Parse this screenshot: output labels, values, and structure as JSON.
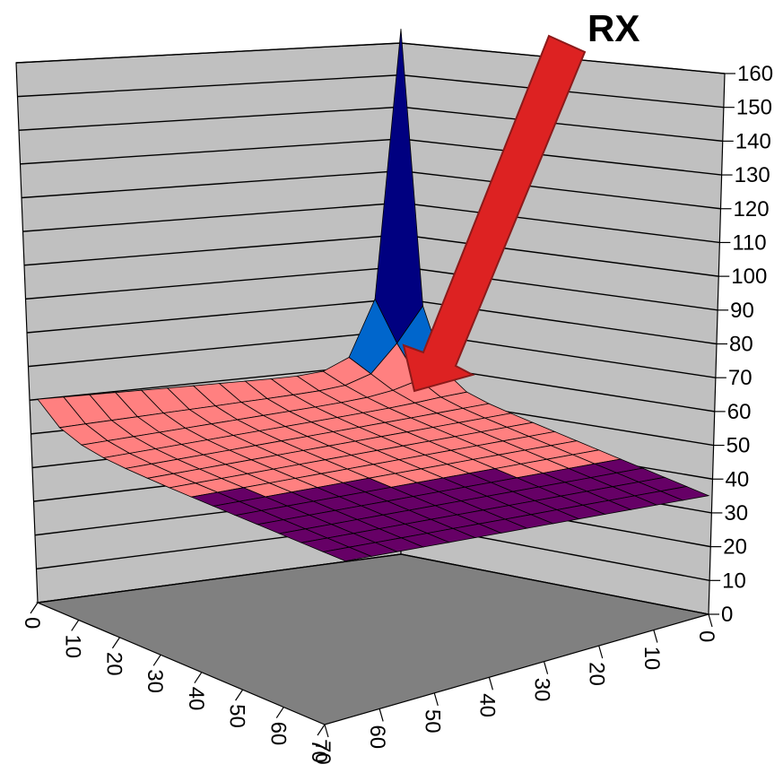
{
  "chart_data": {
    "type": "surface",
    "title": "",
    "xlabel": "",
    "ylabel": "",
    "zlabel": "",
    "zlim": [
      0,
      160
    ],
    "z_ticks": [
      "0",
      "10",
      "20",
      "30",
      "40",
      "50",
      "60",
      "70",
      "80",
      "90",
      "100",
      "110",
      "120",
      "130",
      "140",
      "150",
      "160"
    ],
    "x_ticks": [
      "0",
      "10",
      "20",
      "30",
      "40",
      "50",
      "60",
      "70"
    ],
    "y_ticks": [
      "0",
      "10",
      "20",
      "30",
      "40",
      "50",
      "60",
      "70"
    ],
    "grid": true,
    "surface": {
      "peak": {
        "x": 0,
        "y": 0,
        "z": 155
      },
      "corner_far_right": {
        "x": 0,
        "y": 70,
        "z": 40
      },
      "corner_near": {
        "x": 70,
        "y": 70,
        "z": 25
      },
      "corner_left": {
        "x": 70,
        "y": 0,
        "z": 65
      },
      "plateau_height": 60
    },
    "color_bands": [
      {
        "range": [
          20,
          40
        ],
        "color": "#660066"
      },
      {
        "range": [
          40,
          60
        ],
        "color": "#ff8080"
      },
      {
        "range": [
          60,
          70
        ],
        "color": "#0066cc"
      },
      {
        "range": [
          70,
          80
        ],
        "color": "#ccccff"
      },
      {
        "range": [
          80,
          90
        ],
        "color": "#000080"
      },
      {
        "range": [
          90,
          100
        ],
        "color": "#ff00ff"
      },
      {
        "range": [
          100,
          110
        ],
        "color": "#ffff00"
      },
      {
        "range": [
          110,
          120
        ],
        "color": "#00ffff"
      },
      {
        "range": [
          120,
          130
        ],
        "color": "#800080"
      },
      {
        "range": [
          130,
          140
        ],
        "color": "#800000"
      },
      {
        "range": [
          140,
          160
        ],
        "color": "#008080"
      }
    ],
    "annotations": [
      {
        "text": "RX",
        "arrow_color": "#dd2222",
        "points_to": "surface plateau near back corner"
      }
    ]
  },
  "colors": {
    "wall": "#c0c0c0",
    "floor": "#808080",
    "gridline": "#000000",
    "arrow": "#dd2222"
  }
}
